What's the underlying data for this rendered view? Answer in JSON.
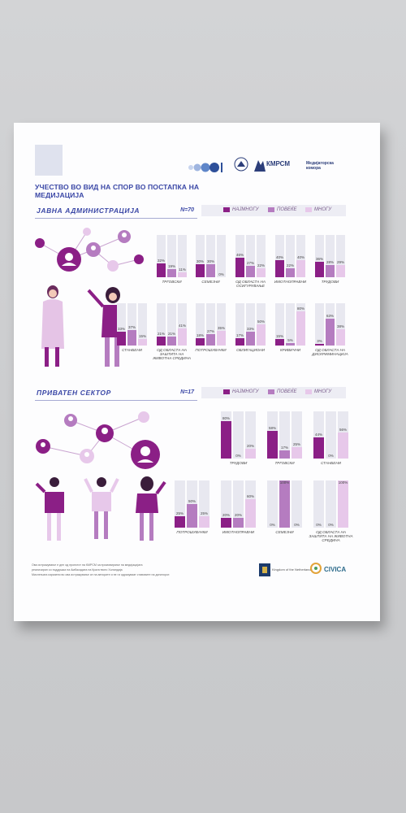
{
  "header": {
    "title": "УЧЕСТВО ВО ВИД НА СПОР ВО ПОСТАПКА НА МЕДИЈАЦИЈА",
    "logos": [
      "КМРСМ",
      "Медијаторска комора"
    ]
  },
  "colors": {
    "najmnogu": "#8b1f86",
    "povekje": "#b57cc0",
    "mnogu": "#e7c8ea",
    "title": "#3a47a6"
  },
  "legend": {
    "najmnogu": "НАЈМНОГУ",
    "povekje": "ПОВЕЌЕ",
    "mnogu": "МНОГУ"
  },
  "public": {
    "title": "ЈАВНА АДМИНИСТРАЦИЈА",
    "n": "N=70",
    "charts": [
      {
        "label": "ТРГОВСКИ",
        "values": [
          32,
          19,
          11
        ]
      },
      {
        "label": "СЕМЕЈНИ",
        "values": [
          30,
          30,
          0
        ]
      },
      {
        "label": "ОД ОБЛАСТА НА ОСИГУРУВАЊЕ",
        "values": [
          46,
          27,
          22
        ]
      },
      {
        "label": "ИМОТНОПРАВНИ",
        "values": [
          40,
          22,
          40
        ]
      },
      {
        "label": "ТРУДОВИ",
        "values": [
          36,
          28,
          29
        ]
      },
      {
        "label": "СТАНБЕНИ",
        "values": [
          33,
          37,
          15
        ]
      },
      {
        "label": "ОД ОБЛАСТА НА ЗАШТИТА НА ЖИВОТНА СРЕДИНА",
        "values": [
          21,
          21,
          41
        ]
      },
      {
        "label": "ПОТРОШУВАЧКИ",
        "values": [
          18,
          27,
          35
        ]
      },
      {
        "label": "ОБЛИГАЦИОНИ",
        "values": [
          17,
          33,
          50
        ]
      },
      {
        "label": "КРИВИЧНИ",
        "values": [
          15,
          5,
          80
        ]
      },
      {
        "label": "ОД ОБЛАСТА НА ДИСКРИМИНАЦИЈА",
        "values": [
          3,
          63,
          38
        ]
      }
    ]
  },
  "private": {
    "title": "ПРИВАТЕН СЕКТОР",
    "n": "N=17",
    "charts": [
      {
        "label": "ТРУДОВИ",
        "values": [
          80,
          0,
          20
        ]
      },
      {
        "label": "ТРГОВСКИ",
        "values": [
          58,
          17,
          25
        ]
      },
      {
        "label": "СТАНБЕНИ",
        "values": [
          44,
          0,
          56
        ]
      },
      {
        "label": "ПОТРОШУВАЧКИ",
        "values": [
          25,
          50,
          25
        ]
      },
      {
        "label": "ИМОТНОПРАВНИ",
        "values": [
          20,
          20,
          60
        ]
      },
      {
        "label": "СЕМЕЈНИ",
        "values": [
          0,
          100,
          0
        ]
      },
      {
        "label": "ОД ОБЛАСТА НА ЗАШТИТА НА ЖИВОТНА СРЕДИНА",
        "values": [
          0,
          0,
          100
        ]
      }
    ]
  },
  "footer": {
    "lines": [
      "Ова истражување е дел од проектот на КМРСМ за промовирање на медијацијата",
      "реализиран со поддршка на Амбасадата на Кралството Холандија",
      "Мислењата изразени во ова истражување се на авторите и не ги одразуваат ставовите на донаторот."
    ],
    "logos": [
      "Kingdom of the Netherlands",
      "CIVICA"
    ]
  }
}
